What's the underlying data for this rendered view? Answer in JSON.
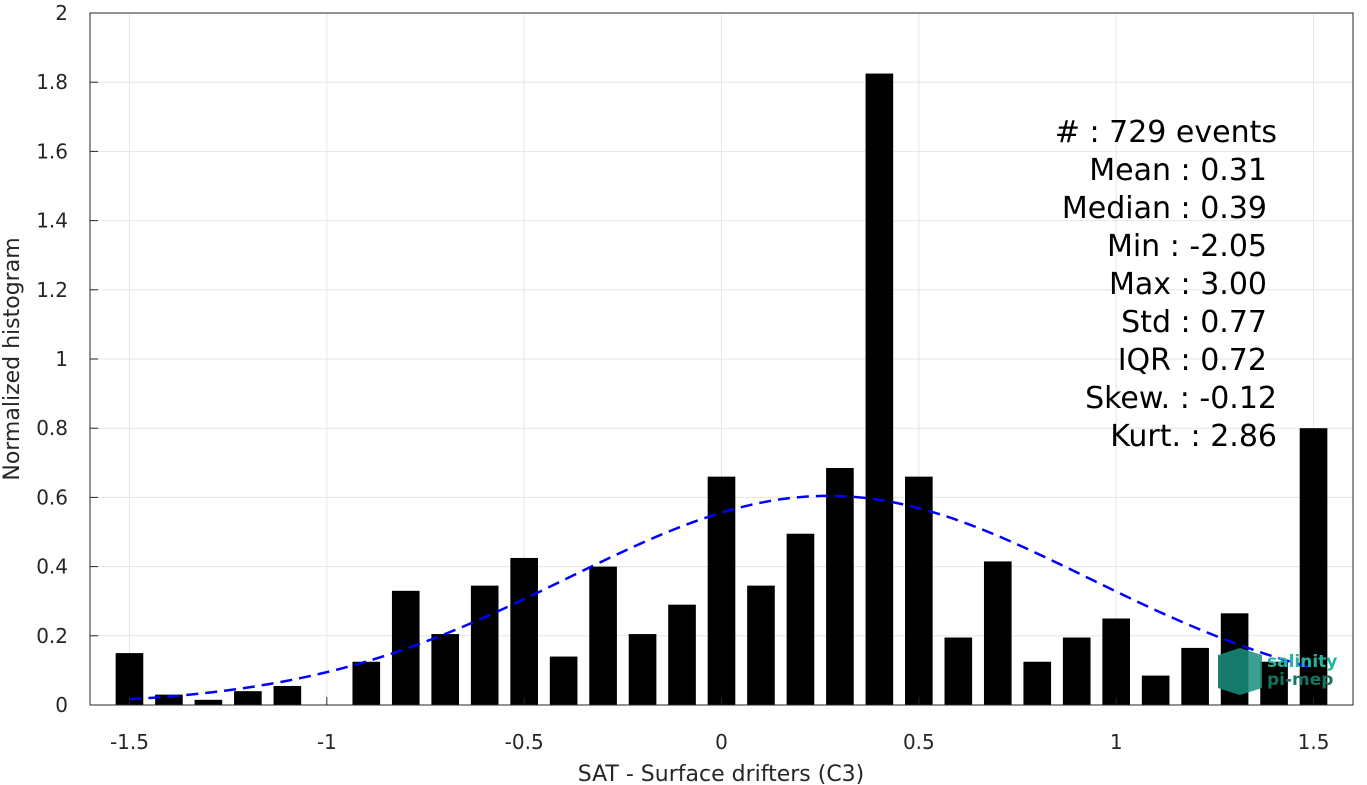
{
  "chart_data": {
    "type": "bar",
    "xlabel": "SAT - Surface drifters (C3)",
    "ylabel": "Normalized histogram",
    "xlim": [
      -1.6,
      1.6
    ],
    "ylim": [
      0,
      2
    ],
    "xticks": [
      -1.5,
      -1,
      -0.5,
      0,
      0.5,
      1,
      1.5
    ],
    "xtick_labels": [
      "-1.5",
      "-1",
      "-0.5",
      "0",
      "0.5",
      "1",
      "1.5"
    ],
    "yticks": [
      0,
      0.2,
      0.4,
      0.6,
      0.8,
      1,
      1.2,
      1.4,
      1.6,
      1.8,
      2
    ],
    "ytick_labels": [
      "0",
      "0.2",
      "0.4",
      "0.6",
      "0.8",
      "1",
      "1.2",
      "1.4",
      "1.6",
      "1.8",
      "2"
    ],
    "grid": true,
    "bar_width": 0.07,
    "series": [
      {
        "type": "bar",
        "color": "#000000",
        "x": [
          -1.5,
          -1.4,
          -1.3,
          -1.2,
          -1.1,
          -1.0,
          -0.9,
          -0.8,
          -0.7,
          -0.6,
          -0.5,
          -0.4,
          -0.3,
          -0.2,
          -0.1,
          0.0,
          0.1,
          0.2,
          0.3,
          0.4,
          0.5,
          0.6,
          0.7,
          0.8,
          0.9,
          1.0,
          1.1,
          1.2,
          1.3,
          1.4,
          1.5
        ],
        "values": [
          0.15,
          0.03,
          0.015,
          0.04,
          0.055,
          0.0,
          0.125,
          0.33,
          0.205,
          0.345,
          0.425,
          0.14,
          0.4,
          0.205,
          0.29,
          0.66,
          0.345,
          0.495,
          0.685,
          1.825,
          0.66,
          0.195,
          0.415,
          0.125,
          0.195,
          0.25,
          0.085,
          0.165,
          0.265,
          0.125,
          0.8
        ]
      },
      {
        "type": "line",
        "style": "dashed",
        "color": "#0000ff",
        "mean": 0.27,
        "std": 0.66,
        "x_range": [
          -1.5,
          1.5
        ]
      }
    ],
    "annotations": [
      {
        "label": "#  :",
        "value": "729 events"
      },
      {
        "label": "Mean :",
        "value": "0.31"
      },
      {
        "label": "Median :",
        "value": "0.39"
      },
      {
        "label": "Min :",
        "value": "-2.05"
      },
      {
        "label": "Max :",
        "value": "3.00"
      },
      {
        "label": "Std :",
        "value": "0.77"
      },
      {
        "label": "IQR :",
        "value": "0.72"
      },
      {
        "label": "Skew. :",
        "value": "-0.12"
      },
      {
        "label": "Kurt. :",
        "value": "2.86"
      }
    ]
  },
  "logo": {
    "line1": "salinity",
    "line2": "pi-mep",
    "color1": "#1fb5a0",
    "color2": "#15735f"
  }
}
